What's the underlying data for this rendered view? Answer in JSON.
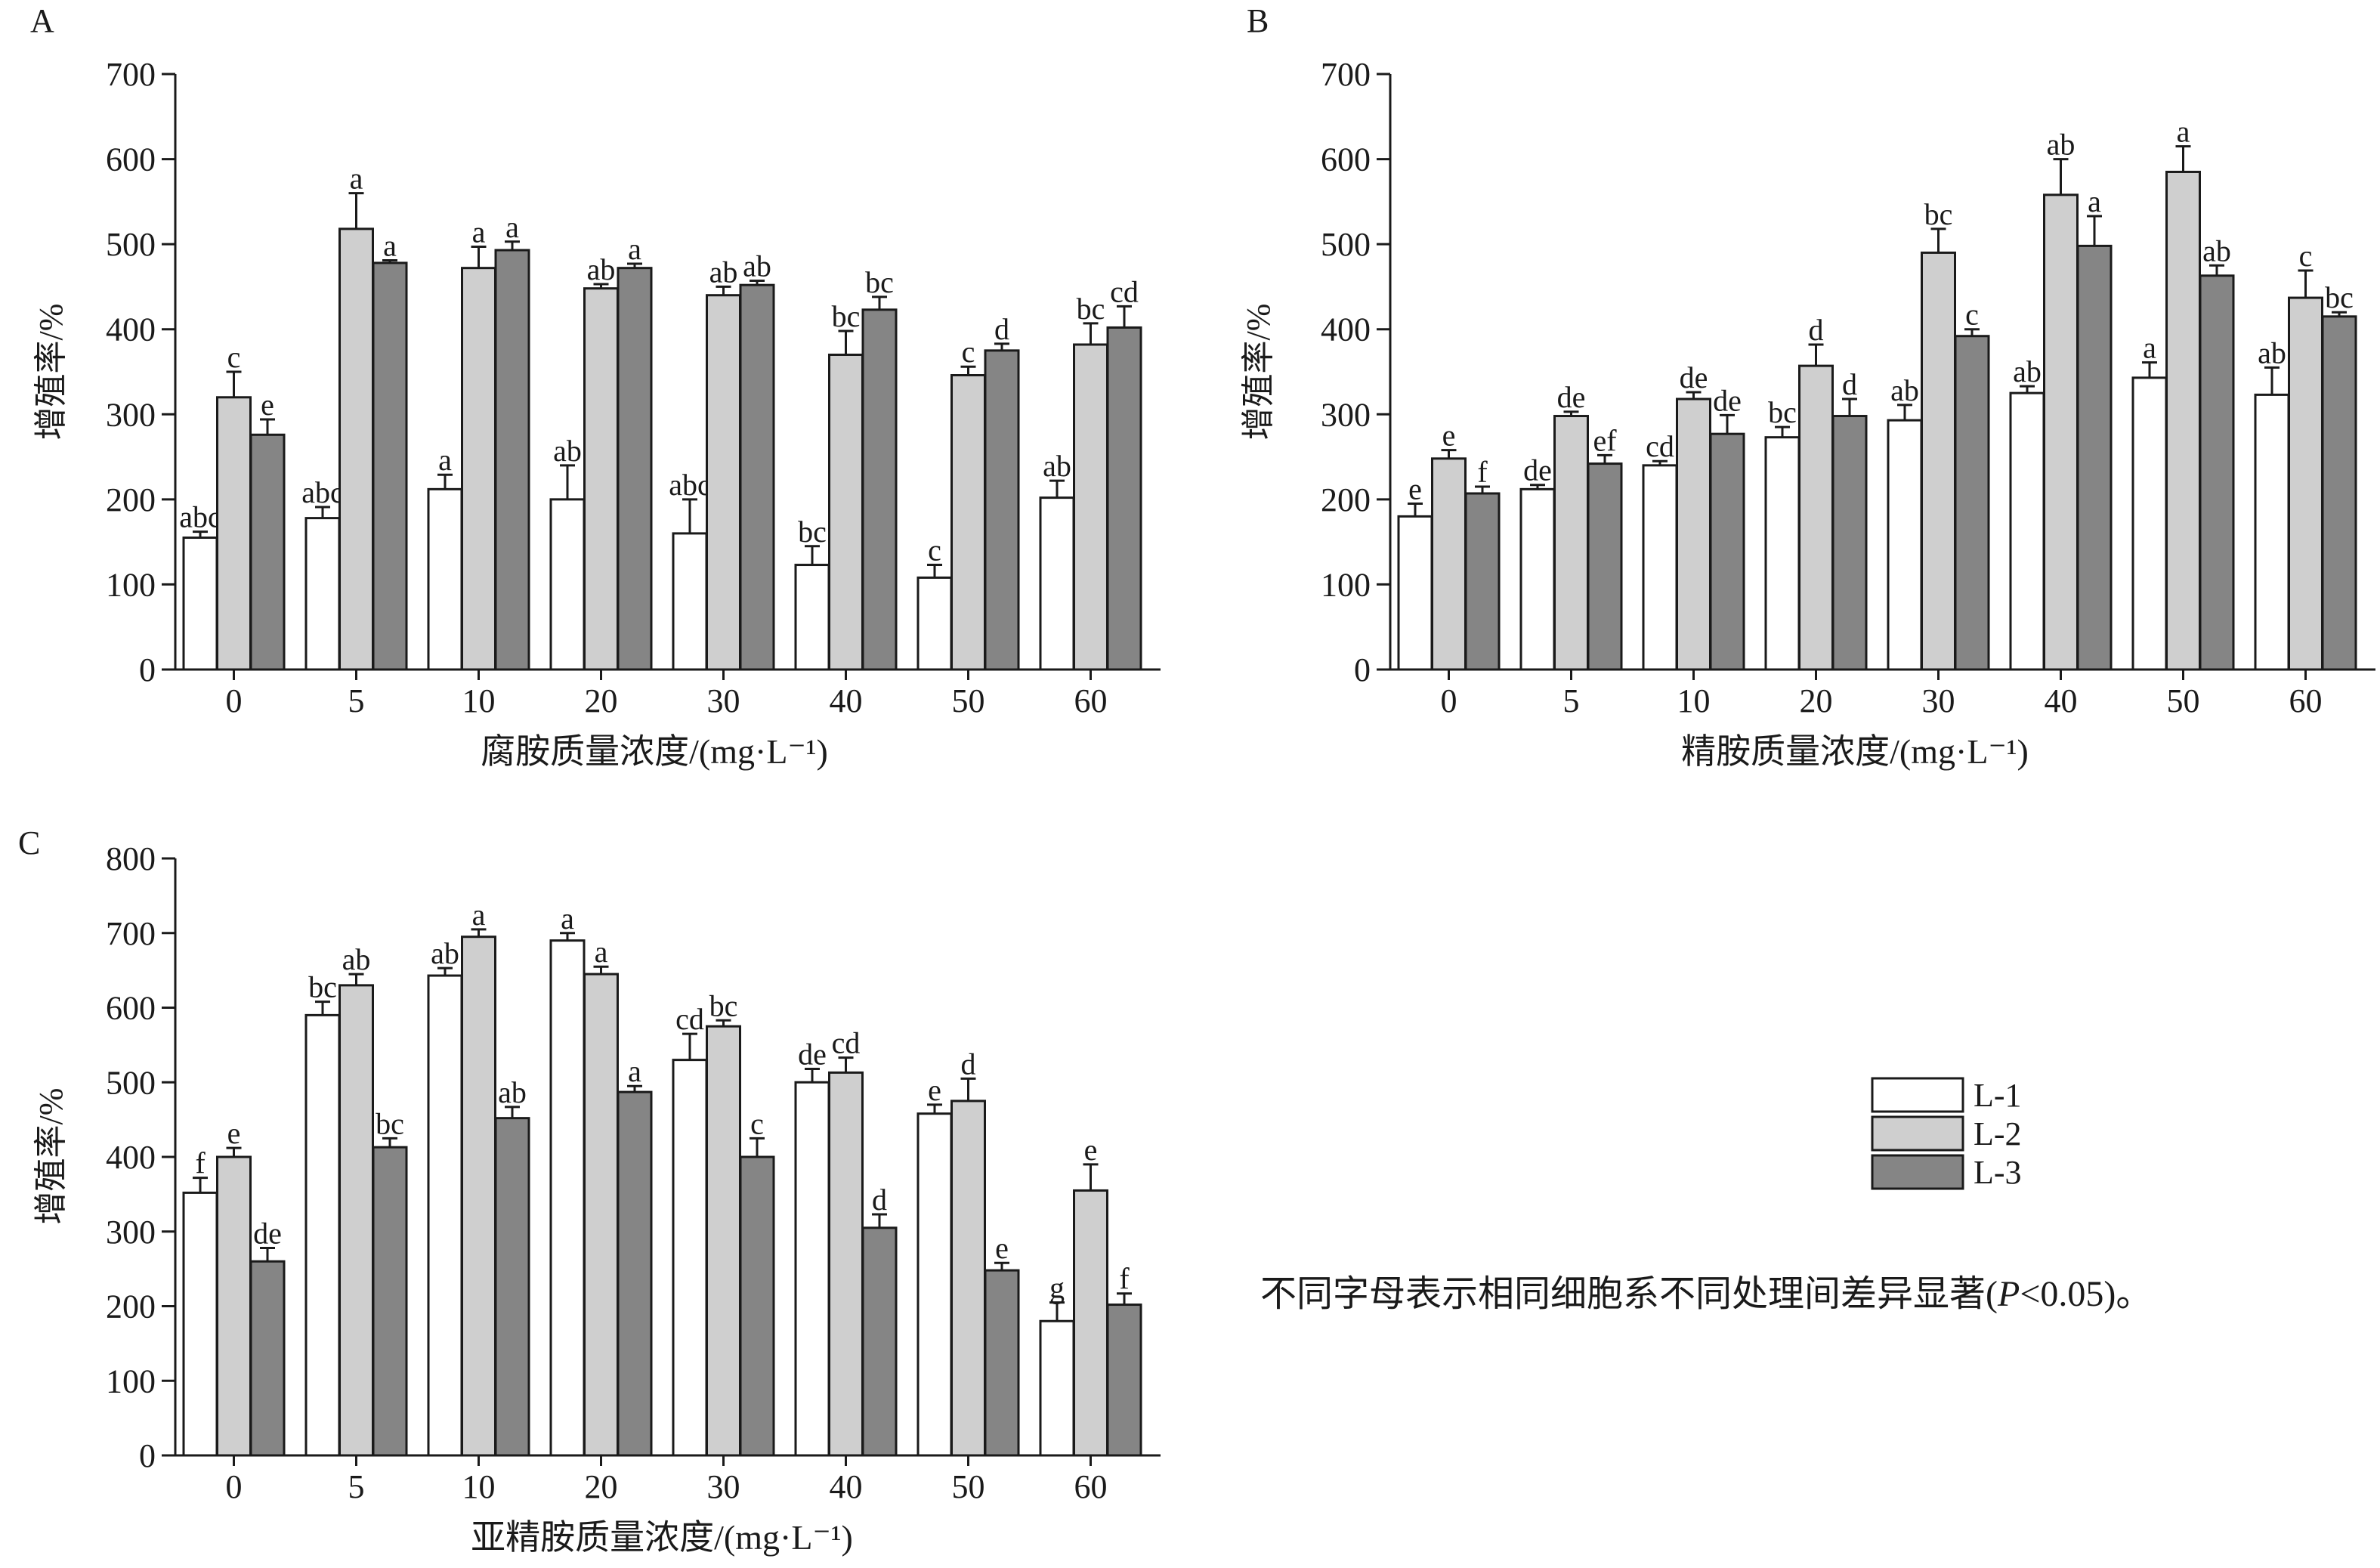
{
  "colors": {
    "L-1": "#ffffff",
    "L-2": "#cfcfcf",
    "L-3": "#858585",
    "axis": "#1a1a1a"
  },
  "legend": {
    "items": [
      {
        "label": "L-1",
        "color": "#ffffff"
      },
      {
        "label": "L-2",
        "color": "#cfcfcf"
      },
      {
        "label": "L-3",
        "color": "#858585"
      }
    ]
  },
  "note": {
    "prefix": "不同字母表示相同细胞系不同处理间差异显著(",
    "italic": "P",
    "suffix": "<0.05)。"
  },
  "chart_data": [
    {
      "type": "bar",
      "panel": "A",
      "xlabel": "腐胺质量浓度/(mg·L⁻¹)",
      "ylabel": "增殖率/%",
      "categories": [
        "0",
        "5",
        "10",
        "20",
        "30",
        "40",
        "50",
        "60"
      ],
      "ylim": [
        0,
        700
      ],
      "yticks": [
        0,
        100,
        200,
        300,
        400,
        500,
        600,
        700
      ],
      "series": [
        {
          "name": "L-1",
          "values": [
            155,
            178,
            212,
            200,
            160,
            123,
            108,
            202
          ],
          "errors": [
            7,
            13,
            17,
            40,
            40,
            22,
            15,
            20
          ],
          "labels": [
            "abc",
            "abc",
            "a",
            "ab",
            "abc",
            "bc",
            "c",
            "ab"
          ]
        },
        {
          "name": "L-2",
          "values": [
            320,
            518,
            472,
            448,
            440,
            370,
            346,
            382
          ],
          "errors": [
            30,
            42,
            25,
            5,
            10,
            28,
            10,
            25
          ],
          "labels": [
            "c",
            "a",
            "a",
            "ab",
            "ab",
            "bc",
            "c",
            "bc"
          ]
        },
        {
          "name": "L-3",
          "values": [
            276,
            478,
            493,
            472,
            452,
            423,
            375,
            402
          ],
          "errors": [
            18,
            3,
            10,
            5,
            5,
            15,
            8,
            25
          ],
          "labels": [
            "e",
            "a",
            "a",
            "a",
            "ab",
            "bc",
            "d",
            "cd"
          ]
        }
      ]
    },
    {
      "type": "bar",
      "panel": "B",
      "xlabel": "精胺质量浓度/(mg·L⁻¹)",
      "ylabel": "增殖率/%",
      "categories": [
        "0",
        "5",
        "10",
        "20",
        "30",
        "40",
        "50",
        "60"
      ],
      "ylim": [
        0,
        700
      ],
      "yticks": [
        0,
        100,
        200,
        300,
        400,
        500,
        600,
        700
      ],
      "series": [
        {
          "name": "L-1",
          "values": [
            180,
            212,
            240,
            273,
            293,
            325,
            343,
            323
          ],
          "errors": [
            15,
            5,
            5,
            12,
            18,
            8,
            18,
            32
          ],
          "labels": [
            "e",
            "de",
            "cd",
            "bc",
            "ab",
            "ab",
            "a",
            "ab"
          ]
        },
        {
          "name": "L-2",
          "values": [
            248,
            298,
            318,
            357,
            490,
            558,
            585,
            437
          ],
          "errors": [
            10,
            5,
            8,
            25,
            28,
            42,
            30,
            32
          ],
          "labels": [
            "e",
            "de",
            "de",
            "d",
            "bc",
            "ab",
            "a",
            "c"
          ]
        },
        {
          "name": "L-3",
          "values": [
            207,
            242,
            277,
            298,
            392,
            498,
            463,
            415
          ],
          "errors": [
            8,
            10,
            22,
            20,
            8,
            35,
            12,
            5
          ],
          "labels": [
            "f",
            "ef",
            "de",
            "d",
            "c",
            "a",
            "ab",
            "bc"
          ]
        }
      ]
    },
    {
      "type": "bar",
      "panel": "C",
      "xlabel": "亚精胺质量浓度/(mg·L⁻¹)",
      "ylabel": "增殖率/%",
      "categories": [
        "0",
        "5",
        "10",
        "20",
        "30",
        "40",
        "50",
        "60"
      ],
      "ylim": [
        0,
        800
      ],
      "yticks": [
        0,
        100,
        200,
        300,
        400,
        500,
        600,
        700,
        800
      ],
      "series": [
        {
          "name": "L-1",
          "values": [
            352,
            590,
            643,
            690,
            530,
            500,
            458,
            180
          ],
          "errors": [
            20,
            18,
            10,
            10,
            35,
            18,
            12,
            25
          ],
          "labels": [
            "f",
            "bc",
            "ab",
            "a",
            "cd",
            "de",
            "e",
            "g"
          ]
        },
        {
          "name": "L-2",
          "values": [
            400,
            630,
            695,
            645,
            575,
            513,
            475,
            355
          ],
          "errors": [
            12,
            15,
            10,
            10,
            8,
            20,
            30,
            35
          ],
          "labels": [
            "e",
            "ab",
            "a",
            "a",
            "bc",
            "cd",
            "d",
            "e"
          ]
        },
        {
          "name": "L-3",
          "values": [
            260,
            413,
            452,
            487,
            400,
            305,
            248,
            202
          ],
          "errors": [
            18,
            12,
            15,
            8,
            25,
            18,
            10,
            15
          ],
          "labels": [
            "de",
            "bc",
            "ab",
            "a",
            "c",
            "d",
            "e",
            "f"
          ]
        }
      ]
    }
  ]
}
